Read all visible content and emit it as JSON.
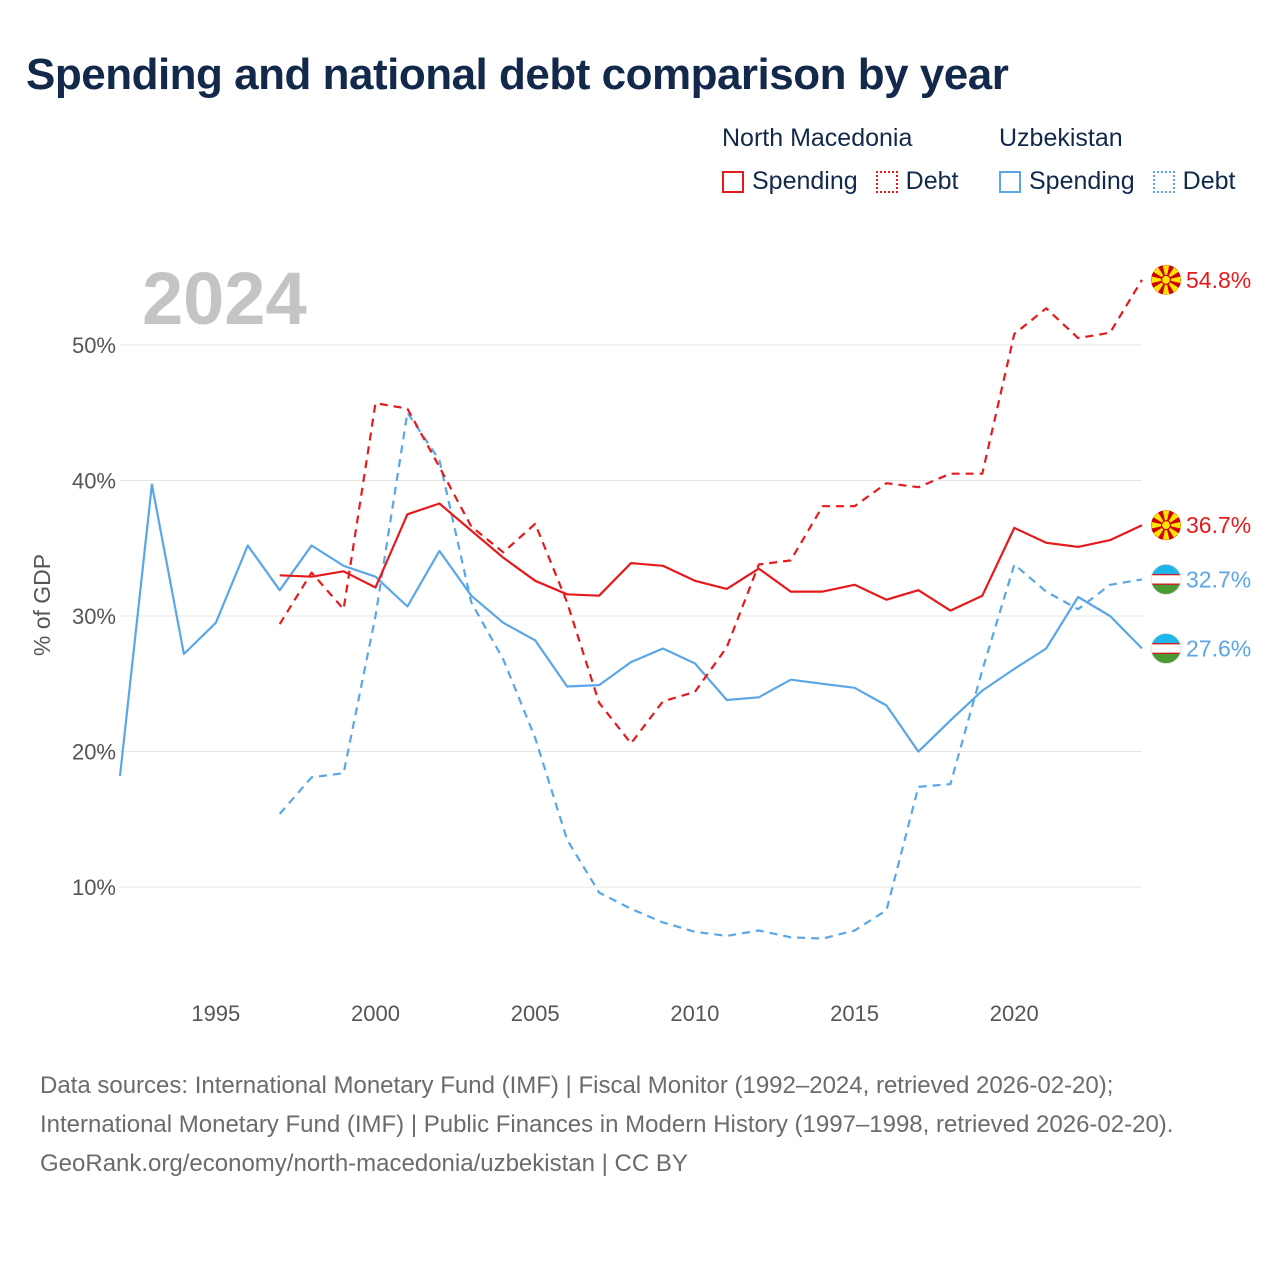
{
  "title": "Spending and national debt comparison by year",
  "year_label": "2024",
  "legend": {
    "groups": [
      {
        "country": "North Macedonia",
        "color": "#e41a1c",
        "items": [
          {
            "label": "Spending",
            "style": "solid"
          },
          {
            "label": "Debt",
            "style": "dotted"
          }
        ]
      },
      {
        "country": "Uzbekistan",
        "color": "#5aa6e6",
        "items": [
          {
            "label": "Spending",
            "style": "solid"
          },
          {
            "label": "Debt",
            "style": "dotted"
          }
        ]
      }
    ]
  },
  "footer": {
    "sources": "Data sources: International Monetary Fund (IMF) | Fiscal Monitor (1992–2024, retrieved 2026-02-20); International Monetary Fund (IMF) | Public Finances in Modern History (1997–1998, retrieved 2026-02-20).",
    "attribution": "GeoRank.org/economy/north-macedonia/uzbekistan | CC BY"
  },
  "chart_data": {
    "type": "line",
    "title": "Spending and national debt comparison by year",
    "xlabel": "",
    "ylabel": "% of GDP",
    "xlim": [
      1992,
      2024
    ],
    "ylim": [
      3,
      57
    ],
    "x_ticks": [
      1995,
      2000,
      2005,
      2010,
      2015,
      2020
    ],
    "y_ticks": [
      {
        "value": 10,
        "label": "10%"
      },
      {
        "value": 20,
        "label": "20%"
      },
      {
        "value": 30,
        "label": "30%"
      },
      {
        "value": 40,
        "label": "40%"
      },
      {
        "value": 50,
        "label": "50%"
      }
    ],
    "grid": true,
    "series": [
      {
        "name": "Uzbekistan Debt",
        "country": "Uzbekistan",
        "flag": "uzbekistan-flag-icon",
        "color": "#5aa6e6",
        "dashed": true,
        "end_label": "32.7%",
        "x": [
          1997,
          1998,
          1999,
          2000,
          2001,
          2002,
          2003,
          2004,
          2005,
          2006,
          2007,
          2008,
          2009,
          2010,
          2011,
          2012,
          2013,
          2014,
          2015,
          2016,
          2017,
          2018,
          2019,
          2020,
          2021,
          2022,
          2023,
          2024
        ],
        "values": [
          15.4,
          18.1,
          18.4,
          30,
          45,
          41.5,
          31,
          26.8,
          21,
          13.5,
          9.6,
          8.4,
          7.4,
          6.7,
          6.4,
          6.8,
          6.3,
          6.2,
          6.8,
          8.3,
          17.4,
          17.6,
          26,
          33.8,
          31.8,
          30.5,
          32.3,
          32.7
        ]
      },
      {
        "name": "Uzbekistan Spending",
        "country": "Uzbekistan",
        "flag": "uzbekistan-flag-icon",
        "color": "#5aa6e6",
        "dashed": false,
        "end_label": "27.6%",
        "x": [
          1992,
          1993,
          1994,
          1995,
          1996,
          1997,
          1998,
          1999,
          2000,
          2001,
          2002,
          2003,
          2004,
          2005,
          2006,
          2007,
          2008,
          2009,
          2010,
          2011,
          2012,
          2013,
          2014,
          2015,
          2016,
          2017,
          2018,
          2019,
          2020,
          2021,
          2022,
          2023,
          2024
        ],
        "values": [
          18.2,
          39.7,
          27.2,
          29.5,
          35.2,
          31.9,
          35.2,
          33.7,
          32.9,
          30.7,
          34.8,
          31.5,
          29.5,
          28.2,
          24.8,
          24.9,
          26.6,
          27.6,
          26.5,
          23.8,
          24,
          25.3,
          25,
          24.7,
          23.4,
          20,
          22.3,
          24.5,
          26.1,
          27.6,
          31.4,
          30,
          27.6
        ]
      },
      {
        "name": "North Macedonia Debt",
        "country": "North Macedonia",
        "flag": "north-macedonia-flag-icon",
        "color": "#e41a1c",
        "dashed": true,
        "end_label": "54.8%",
        "x": [
          1997,
          1998,
          1999,
          2000,
          2001,
          2002,
          2003,
          2004,
          2005,
          2006,
          2007,
          2008,
          2009,
          2010,
          2011,
          2012,
          2013,
          2014,
          2015,
          2016,
          2017,
          2018,
          2019,
          2020,
          2021,
          2022,
          2023,
          2024
        ],
        "values": [
          29.4,
          33.2,
          30.5,
          45.7,
          45.3,
          41,
          36.6,
          34.7,
          36.8,
          31,
          23.6,
          20.6,
          23.7,
          24.4,
          27.7,
          33.8,
          34.1,
          38.1,
          38.1,
          39.8,
          39.5,
          40.5,
          40.5,
          50.8,
          52.7,
          50.5,
          50.9,
          54.8
        ]
      },
      {
        "name": "North Macedonia Spending",
        "country": "North Macedonia",
        "flag": "north-macedonia-flag-icon",
        "color": "#e41a1c",
        "dashed": false,
        "end_label": "36.7%",
        "x": [
          1997,
          1998,
          1999,
          2000,
          2001,
          2002,
          2003,
          2004,
          2005,
          2006,
          2007,
          2008,
          2009,
          2010,
          2011,
          2012,
          2013,
          2014,
          2015,
          2016,
          2017,
          2018,
          2019,
          2020,
          2021,
          2022,
          2023,
          2024
        ],
        "values": [
          33,
          32.9,
          33.3,
          32.1,
          37.5,
          38.3,
          36.3,
          34.3,
          32.6,
          31.6,
          31.5,
          33.9,
          33.7,
          32.6,
          32,
          33.5,
          31.8,
          31.8,
          32.3,
          31.2,
          31.9,
          30.4,
          31.5,
          36.5,
          35.4,
          35.1,
          35.6,
          36.7
        ]
      }
    ]
  }
}
